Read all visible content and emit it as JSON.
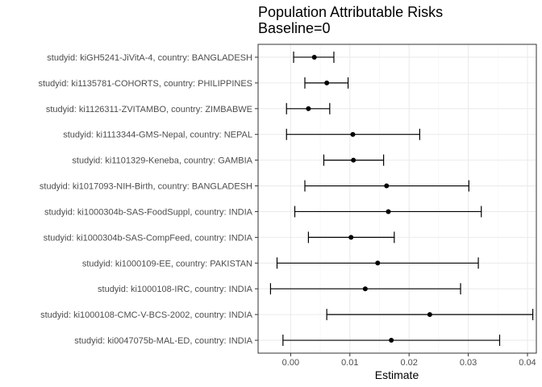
{
  "chart_data": {
    "type": "forest",
    "title": "Population Attributable Risks",
    "subtitle": "Baseline=0",
    "xlabel": "Estimate",
    "ylabel": "",
    "xlim": [
      -0.0055,
      0.0415
    ],
    "xticks": [
      0.0,
      0.01,
      0.02,
      0.03,
      0.04
    ],
    "xtick_labels": [
      "0.00",
      "0.01",
      "0.02",
      "0.03",
      "0.04"
    ],
    "grid": true,
    "colors": {
      "panel_border": "#333333",
      "grid_major": "#ebebeb",
      "grid_minor": "#f5f5f5",
      "marks": "#000000"
    },
    "studies": [
      {
        "label": "studyid: kiGH5241-JiVitA-4, country: BANGLADESH",
        "estimate": 0.004,
        "lower": 0.0005,
        "upper": 0.0073
      },
      {
        "label": "studyid: ki1135781-COHORTS, country: PHILIPPINES",
        "estimate": 0.0061,
        "lower": 0.0024,
        "upper": 0.0097
      },
      {
        "label": "studyid: ki1126311-ZVITAMBO, country: ZIMBABWE",
        "estimate": 0.003,
        "lower": -0.0007,
        "upper": 0.0066
      },
      {
        "label": "studyid: ki1113344-GMS-Nepal, country: NEPAL",
        "estimate": 0.0105,
        "lower": -0.0007,
        "upper": 0.0218
      },
      {
        "label": "studyid: ki1101329-Keneba, country: GAMBIA",
        "estimate": 0.0106,
        "lower": 0.0056,
        "upper": 0.0157
      },
      {
        "label": "studyid: ki1017093-NIH-Birth, country: BANGLADESH",
        "estimate": 0.0162,
        "lower": 0.0024,
        "upper": 0.0301
      },
      {
        "label": "studyid: ki1000304b-SAS-FoodSuppl, country: INDIA",
        "estimate": 0.0165,
        "lower": 0.0007,
        "upper": 0.0322
      },
      {
        "label": "studyid: ki1000304b-SAS-CompFeed, country: INDIA",
        "estimate": 0.0102,
        "lower": 0.003,
        "upper": 0.0175
      },
      {
        "label": "studyid: ki1000109-EE, country: PAKISTAN",
        "estimate": 0.0147,
        "lower": -0.0023,
        "upper": 0.0317
      },
      {
        "label": "studyid: ki1000108-IRC, country: INDIA",
        "estimate": 0.0126,
        "lower": -0.0034,
        "upper": 0.0287
      },
      {
        "label": "studyid: ki1000108-CMC-V-BCS-2002, country: INDIA",
        "estimate": 0.0235,
        "lower": 0.0061,
        "upper": 0.0409
      },
      {
        "label": "studyid: ki0047075b-MAL-ED, country: INDIA",
        "estimate": 0.017,
        "lower": -0.0013,
        "upper": 0.0353
      }
    ]
  }
}
